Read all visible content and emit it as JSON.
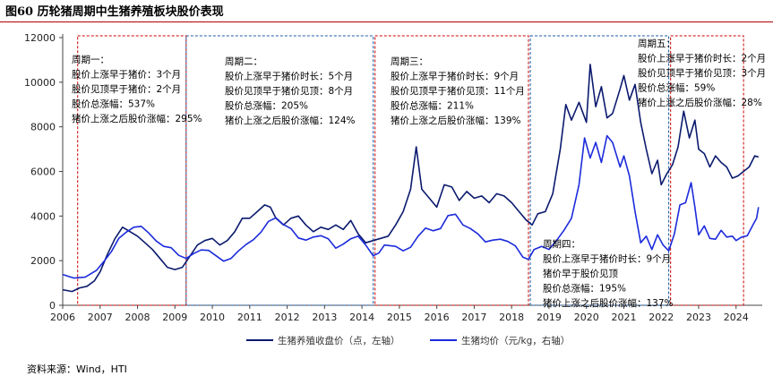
{
  "title": "图60 历轮猪周期中生猪养殖板块股价表现",
  "source": "资料来源：Wind，HTI",
  "chart_data": {
    "type": "line",
    "title": "图60 历轮猪周期中生猪养殖板块股价表现",
    "xlabel": "",
    "ylabel": "",
    "xlim": [
      2006.0,
      2024.7
    ],
    "ylim": [
      0,
      12000
    ],
    "y_ticks": [
      0,
      2000,
      4000,
      6000,
      8000,
      10000,
      12000
    ],
    "x_ticks": [
      "2006",
      "2007",
      "2008",
      "2009",
      "2010",
      "2011",
      "2012",
      "2013",
      "2014",
      "2015",
      "2016",
      "2017",
      "2018",
      "2019",
      "2020",
      "2021",
      "2022",
      "2023",
      "2024"
    ],
    "grid": false,
    "legend_position": "bottom",
    "series": [
      {
        "name": "生猪养殖收盘价（点，左轴）",
        "color": "#0b1a6e",
        "axis": "left",
        "points": [
          [
            2006.0,
            700
          ],
          [
            2006.25,
            620
          ],
          [
            2006.45,
            780
          ],
          [
            2006.65,
            850
          ],
          [
            2006.85,
            1100
          ],
          [
            2007.0,
            1500
          ],
          [
            2007.2,
            2300
          ],
          [
            2007.4,
            3000
          ],
          [
            2007.6,
            3500
          ],
          [
            2007.8,
            3300
          ],
          [
            2008.0,
            3100
          ],
          [
            2008.2,
            2800
          ],
          [
            2008.4,
            2500
          ],
          [
            2008.6,
            2100
          ],
          [
            2008.8,
            1700
          ],
          [
            2009.0,
            1600
          ],
          [
            2009.2,
            1700
          ],
          [
            2009.4,
            2200
          ],
          [
            2009.6,
            2700
          ],
          [
            2009.8,
            2900
          ],
          [
            2010.0,
            3000
          ],
          [
            2010.2,
            2700
          ],
          [
            2010.4,
            2900
          ],
          [
            2010.6,
            3300
          ],
          [
            2010.8,
            3900
          ],
          [
            2011.0,
            3900
          ],
          [
            2011.2,
            4200
          ],
          [
            2011.4,
            4500
          ],
          [
            2011.55,
            4400
          ],
          [
            2011.7,
            3900
          ],
          [
            2011.9,
            3600
          ],
          [
            2012.1,
            3900
          ],
          [
            2012.3,
            4000
          ],
          [
            2012.5,
            3600
          ],
          [
            2012.7,
            3300
          ],
          [
            2012.9,
            3500
          ],
          [
            2013.1,
            3400
          ],
          [
            2013.3,
            3600
          ],
          [
            2013.5,
            3400
          ],
          [
            2013.7,
            3800
          ],
          [
            2013.9,
            3200
          ],
          [
            2014.1,
            2800
          ],
          [
            2014.3,
            2900
          ],
          [
            2014.5,
            3000
          ],
          [
            2014.7,
            3100
          ],
          [
            2014.9,
            3600
          ],
          [
            2015.1,
            4200
          ],
          [
            2015.3,
            5200
          ],
          [
            2015.45,
            7100
          ],
          [
            2015.6,
            5200
          ],
          [
            2015.8,
            4800
          ],
          [
            2016.0,
            4400
          ],
          [
            2016.2,
            5400
          ],
          [
            2016.4,
            5300
          ],
          [
            2016.6,
            4700
          ],
          [
            2016.8,
            5100
          ],
          [
            2017.0,
            4800
          ],
          [
            2017.2,
            4900
          ],
          [
            2017.4,
            4600
          ],
          [
            2017.6,
            5000
          ],
          [
            2017.8,
            4900
          ],
          [
            2018.0,
            4600
          ],
          [
            2018.2,
            4200
          ],
          [
            2018.4,
            3800
          ],
          [
            2018.55,
            3600
          ],
          [
            2018.7,
            4100
          ],
          [
            2018.9,
            4200
          ],
          [
            2019.1,
            5000
          ],
          [
            2019.3,
            7000
          ],
          [
            2019.45,
            9000
          ],
          [
            2019.6,
            8300
          ],
          [
            2019.8,
            9100
          ],
          [
            2020.0,
            8200
          ],
          [
            2020.1,
            10800
          ],
          [
            2020.25,
            8900
          ],
          [
            2020.4,
            9800
          ],
          [
            2020.55,
            8400
          ],
          [
            2020.7,
            8600
          ],
          [
            2020.9,
            9700
          ],
          [
            2021.0,
            10300
          ],
          [
            2021.15,
            9200
          ],
          [
            2021.3,
            9900
          ],
          [
            2021.45,
            8200
          ],
          [
            2021.6,
            7000
          ],
          [
            2021.75,
            5900
          ],
          [
            2021.9,
            6500
          ],
          [
            2022.0,
            5400
          ],
          [
            2022.15,
            5900
          ],
          [
            2022.3,
            6300
          ],
          [
            2022.45,
            7100
          ],
          [
            2022.6,
            8700
          ],
          [
            2022.75,
            7500
          ],
          [
            2022.9,
            8300
          ],
          [
            2023.0,
            7000
          ],
          [
            2023.15,
            6800
          ],
          [
            2023.3,
            6200
          ],
          [
            2023.45,
            6700
          ],
          [
            2023.6,
            6400
          ],
          [
            2023.75,
            6200
          ],
          [
            2023.9,
            5700
          ],
          [
            2024.05,
            5800
          ],
          [
            2024.2,
            6000
          ],
          [
            2024.35,
            6200
          ],
          [
            2024.5,
            6700
          ],
          [
            2024.6,
            6650
          ]
        ]
      },
      {
        "name": "生猪均价（元/kg，右轴）",
        "color": "#1c2bdb",
        "axis": "right",
        "points": [
          [
            2006.0,
            6.9
          ],
          [
            2006.3,
            6.1
          ],
          [
            2006.6,
            6.3
          ],
          [
            2006.9,
            7.8
          ],
          [
            2007.1,
            9.8
          ],
          [
            2007.3,
            12.0
          ],
          [
            2007.5,
            15.0
          ],
          [
            2007.7,
            16.4
          ],
          [
            2007.9,
            17.5
          ],
          [
            2008.1,
            17.7
          ],
          [
            2008.3,
            16.2
          ],
          [
            2008.5,
            14.4
          ],
          [
            2008.7,
            13.2
          ],
          [
            2008.9,
            12.9
          ],
          [
            2009.1,
            11.2
          ],
          [
            2009.3,
            10.5
          ],
          [
            2009.5,
            11.6
          ],
          [
            2009.7,
            12.4
          ],
          [
            2009.9,
            12.3
          ],
          [
            2010.1,
            11.1
          ],
          [
            2010.3,
            9.9
          ],
          [
            2010.5,
            10.5
          ],
          [
            2010.7,
            12.2
          ],
          [
            2010.9,
            13.6
          ],
          [
            2011.1,
            14.7
          ],
          [
            2011.3,
            16.4
          ],
          [
            2011.5,
            18.8
          ],
          [
            2011.7,
            19.6
          ],
          [
            2011.9,
            18.1
          ],
          [
            2012.1,
            17.2
          ],
          [
            2012.3,
            15.1
          ],
          [
            2012.5,
            14.6
          ],
          [
            2012.7,
            15.3
          ],
          [
            2012.9,
            15.6
          ],
          [
            2013.1,
            14.9
          ],
          [
            2013.3,
            12.8
          ],
          [
            2013.5,
            13.7
          ],
          [
            2013.7,
            14.9
          ],
          [
            2013.9,
            15.5
          ],
          [
            2014.1,
            13.5
          ],
          [
            2014.3,
            11.1
          ],
          [
            2014.45,
            11.7
          ],
          [
            2014.6,
            13.5
          ],
          [
            2014.9,
            13.2
          ],
          [
            2015.1,
            12.2
          ],
          [
            2015.3,
            13.0
          ],
          [
            2015.5,
            15.5
          ],
          [
            2015.7,
            17.3
          ],
          [
            2015.9,
            16.7
          ],
          [
            2016.1,
            17.2
          ],
          [
            2016.3,
            20.1
          ],
          [
            2016.5,
            20.4
          ],
          [
            2016.7,
            18.0
          ],
          [
            2016.9,
            17.2
          ],
          [
            2017.1,
            16.0
          ],
          [
            2017.3,
            14.2
          ],
          [
            2017.5,
            14.6
          ],
          [
            2017.7,
            14.8
          ],
          [
            2017.9,
            14.3
          ],
          [
            2018.1,
            13.3
          ],
          [
            2018.3,
            10.8
          ],
          [
            2018.45,
            10.3
          ],
          [
            2018.6,
            12.5
          ],
          [
            2018.8,
            13.2
          ],
          [
            2019.0,
            12.5
          ],
          [
            2019.2,
            14.5
          ],
          [
            2019.4,
            16.8
          ],
          [
            2019.6,
            19.5
          ],
          [
            2019.8,
            27.0
          ],
          [
            2019.95,
            37.5
          ],
          [
            2020.1,
            33.0
          ],
          [
            2020.25,
            36.5
          ],
          [
            2020.4,
            32.0
          ],
          [
            2020.55,
            38.0
          ],
          [
            2020.7,
            36.5
          ],
          [
            2020.9,
            31.0
          ],
          [
            2021.0,
            33.5
          ],
          [
            2021.15,
            29.0
          ],
          [
            2021.3,
            21.0
          ],
          [
            2021.45,
            14.0
          ],
          [
            2021.6,
            15.5
          ],
          [
            2021.75,
            12.5
          ],
          [
            2021.9,
            15.8
          ],
          [
            2022.05,
            13.5
          ],
          [
            2022.2,
            12.2
          ],
          [
            2022.35,
            16.0
          ],
          [
            2022.5,
            22.5
          ],
          [
            2022.65,
            23.0
          ],
          [
            2022.8,
            27.5
          ],
          [
            2022.9,
            22.0
          ],
          [
            2023.0,
            15.8
          ],
          [
            2023.15,
            17.8
          ],
          [
            2023.3,
            15.0
          ],
          [
            2023.45,
            14.8
          ],
          [
            2023.6,
            16.8
          ],
          [
            2023.75,
            15.3
          ],
          [
            2023.9,
            15.5
          ],
          [
            2024.0,
            14.5
          ],
          [
            2024.15,
            15.3
          ],
          [
            2024.3,
            15.6
          ],
          [
            2024.45,
            18.0
          ],
          [
            2024.55,
            19.5
          ],
          [
            2024.6,
            22.0
          ]
        ]
      }
    ],
    "right_axis": {
      "ylim": [
        0,
        60
      ]
    },
    "cycle_boxes": [
      {
        "x0": 2006.4,
        "x1": 2009.3,
        "color": "#cc0000"
      },
      {
        "x0": 2009.3,
        "x1": 2014.3,
        "color": "#1f5aa6"
      },
      {
        "x0": 2014.35,
        "x1": 2018.45,
        "color": "#cc0000"
      },
      {
        "x0": 2018.5,
        "x1": 2022.2,
        "color": "#1f5aa6"
      },
      {
        "x0": 2022.25,
        "x1": 2024.2,
        "color": "#cc0000"
      }
    ],
    "annotations": [
      {
        "id": "c1",
        "lines": [
          "周期一：",
          "股价上涨早于猪价：3个月",
          "股价见顶早于猪价：2个月",
          "股价总涨幅：537%",
          "猪价上涨之后股价涨幅：295%"
        ]
      },
      {
        "id": "c2",
        "lines": [
          "周期二：",
          "股价上涨早于猪价时长：5个月",
          "股价见顶早于猪价见顶：8个月",
          "股价总涨幅：205%",
          "猪价上涨之后股价涨幅：124%"
        ]
      },
      {
        "id": "c3",
        "lines": [
          "周期三：",
          "股价上涨早于猪价时长：9个月",
          "股价见顶早于猪价见顶：11个月",
          "股价总涨幅：211%",
          "猪价上涨之后股价涨幅：139%"
        ]
      },
      {
        "id": "c4",
        "lines": [
          "周期四：",
          "股价上涨早于猪价时长：9个月",
          "猪价早于股价见顶",
          "股价总涨幅：195%",
          "猪价上涨之后股价涨幅：137%"
        ]
      },
      {
        "id": "c5",
        "lines": [
          "周期五：",
          "股价上涨早于猪价时长：2个月",
          "股价见顶早于猪价见顶：3个月",
          "股价总涨幅：59%",
          "猪价上涨之后股价涨幅：28%"
        ]
      }
    ]
  }
}
